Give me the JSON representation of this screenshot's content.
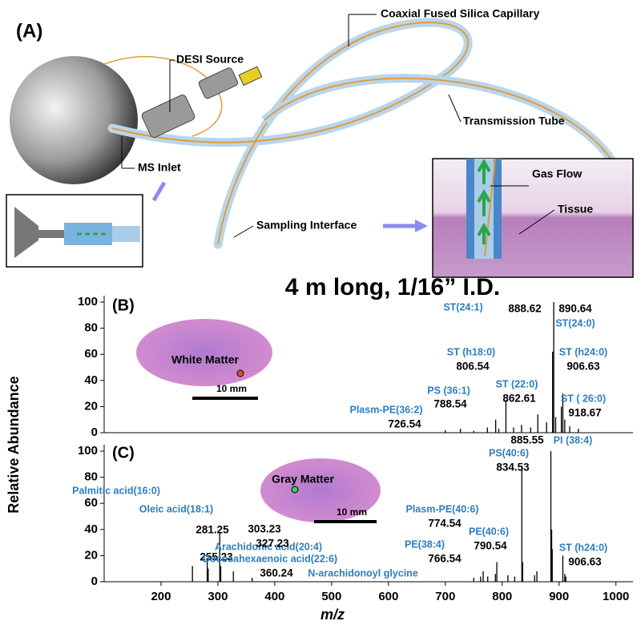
{
  "figure_a": {
    "panel": "(A)",
    "desi_source": "DESI Source",
    "capillary": "Coaxial Fused Silica Capillary",
    "transmission_tube": "Transmission Tube",
    "ms_inlet": "MS Inlet",
    "sampling_interface": "Sampling Interface",
    "gas_flow": "Gas Flow",
    "tissue": "Tissue",
    "caption": "4 m long, 1/16” I.D."
  },
  "axis_titles": {
    "y": "Relative Abundance",
    "x": "m/z"
  },
  "chart_data": [
    {
      "type": "spectrum",
      "panel": "(B)",
      "inset_label": "White Matter",
      "scale_bar": "10 mm",
      "color": "#000000",
      "xlim": [
        100,
        1030
      ],
      "ylim": [
        0,
        100
      ],
      "yticks": [
        0,
        20,
        40,
        60,
        80,
        100
      ],
      "x": [
        726.54,
        788.54,
        806.54,
        862.61,
        888.62,
        890.64,
        906.63,
        918.67,
        700,
        750,
        774,
        794,
        820,
        834,
        850,
        878,
        894,
        904,
        910,
        934
      ],
      "values": [
        3,
        10,
        25,
        14,
        62,
        100,
        30,
        5,
        2,
        1.5,
        4,
        3,
        4,
        6,
        4,
        8,
        12,
        20,
        10,
        3
      ],
      "peak_names": [
        "Plasm-PE(36:2)",
        "PS (36:1)",
        "ST (h18:0)",
        "ST (22:0)",
        "ST(24:1)",
        "ST(24:0)",
        "ST (h24:0)",
        "ST ( 26:0)",
        null,
        null,
        null,
        null,
        null,
        null,
        null,
        null,
        null,
        null,
        null,
        null
      ]
    },
    {
      "type": "spectrum",
      "panel": "(C)",
      "inset_label": "Gray Matter",
      "scale_bar": "10 mm",
      "color": "#000000",
      "xlim": [
        100,
        1030
      ],
      "ylim": [
        0,
        100
      ],
      "yticks": [
        0,
        20,
        40,
        60,
        80,
        100
      ],
      "xticks": [
        200,
        300,
        400,
        500,
        600,
        700,
        800,
        900,
        1000
      ],
      "x": [
        255.23,
        281.25,
        303.23,
        327.23,
        360.24,
        766.54,
        774.54,
        790.54,
        834.53,
        885.55,
        906.63,
        283,
        305,
        750,
        762,
        788,
        810,
        822,
        836,
        857,
        861,
        887,
        888,
        910,
        912
      ],
      "values": [
        12,
        18,
        38,
        8,
        3,
        8,
        4,
        15,
        88,
        100,
        20,
        10,
        12,
        3,
        4,
        6,
        5,
        4,
        15,
        5,
        8,
        40,
        25,
        6,
        4
      ],
      "peak_names": [
        "Palmitic acid(16:0)",
        "Oleic acid(18:1)",
        "Arachidonic acid(20:4)",
        "Docosahexaenoic acid(22:6)",
        "N-arachidonoyl glycine",
        "PE(38:4)",
        "Plasm-PE(40:6)",
        "PE(40:6)",
        "PS(40:6)",
        "PI (38:4)",
        "ST (h24:0)",
        null,
        null,
        null,
        null,
        null,
        null,
        null,
        null,
        null,
        null,
        null,
        null,
        null,
        null
      ]
    }
  ]
}
